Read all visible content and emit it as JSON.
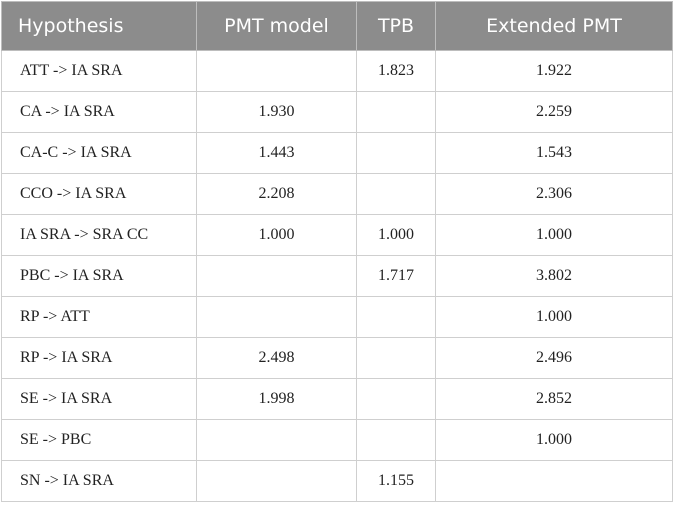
{
  "table": {
    "header": [
      "Hypothesis",
      "PMT model",
      "TPB",
      "Extended PMT"
    ],
    "rows": [
      [
        "ATT -> IA SRA",
        null,
        "1.823",
        "1.922"
      ],
      [
        "CA -> IA SRA",
        "1.930",
        null,
        "2.259"
      ],
      [
        "CA-C -> IA SRA",
        "1.443",
        null,
        "1.543"
      ],
      [
        "CCO -> IA SRA",
        "2.208",
        null,
        "2.306"
      ],
      [
        "IA SRA -> SRA CC",
        "1.000",
        "1.000",
        "1.000"
      ],
      [
        "PBC -> IA SRA",
        null,
        "1.717",
        "3.802"
      ],
      [
        "RP -> ATT",
        null,
        null,
        "1.000"
      ],
      [
        "RP -> IA SRA",
        "2.498",
        null,
        "2.496"
      ],
      [
        "SE -> IA SRA",
        "1.998",
        null,
        "2.852"
      ],
      [
        "SE -> PBC",
        null,
        null,
        "1.000"
      ],
      [
        "SN -> IA SRA",
        null,
        "1.155",
        null
      ]
    ]
  }
}
